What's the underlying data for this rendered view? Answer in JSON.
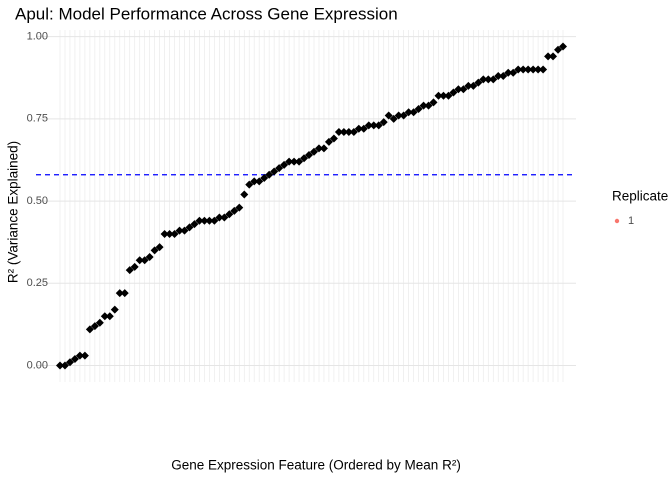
{
  "chart_data": {
    "type": "scatter",
    "title": "Apul: Model Performance Across Gene Expression",
    "x_label": "Gene Expression Feature (Ordered by Mean R²)",
    "y_label": "R² (Variance Explained)",
    "legend_title": "Replicate",
    "categories": [
      null,
      null,
      null,
      null,
      null,
      null,
      null,
      null,
      null,
      null,
      null,
      null,
      null,
      null,
      null,
      null,
      null,
      null,
      null,
      null,
      null,
      null,
      null,
      null,
      null,
      null,
      null,
      null,
      null,
      null,
      null,
      null,
      null,
      null,
      null,
      null,
      null,
      null,
      null,
      null,
      null,
      null,
      null,
      null,
      null,
      null,
      null,
      null,
      null,
      null,
      null,
      null,
      null,
      null,
      null,
      null,
      null,
      null,
      null,
      null,
      null,
      null,
      null,
      null,
      null,
      null,
      null,
      null,
      null,
      null,
      null,
      null,
      null,
      null,
      null,
      null,
      null,
      null,
      null,
      null,
      null,
      null,
      null,
      null,
      null,
      null,
      null,
      null,
      null,
      null,
      null,
      null,
      null,
      null,
      null,
      null,
      null,
      null,
      null,
      null,
      null,
      null
    ],
    "series": [
      {
        "name": "1",
        "color": "#000000",
        "legend_color": "#F8766D",
        "values": [
          0.0,
          0.0,
          0.01,
          0.02,
          0.03,
          0.03,
          0.11,
          0.12,
          0.13,
          0.15,
          0.15,
          0.17,
          0.22,
          0.22,
          0.29,
          0.3,
          0.32,
          0.32,
          0.33,
          0.35,
          0.36,
          0.4,
          0.4,
          0.4,
          0.41,
          0.41,
          0.42,
          0.43,
          0.44,
          0.44,
          0.44,
          0.44,
          0.45,
          0.45,
          0.46,
          0.47,
          0.48,
          0.52,
          0.55,
          0.56,
          0.56,
          0.57,
          0.58,
          0.59,
          0.6,
          0.61,
          0.62,
          0.62,
          0.62,
          0.63,
          0.64,
          0.65,
          0.66,
          0.66,
          0.68,
          0.69,
          0.71,
          0.71,
          0.71,
          0.71,
          0.72,
          0.72,
          0.73,
          0.73,
          0.73,
          0.74,
          0.76,
          0.75,
          0.76,
          0.76,
          0.77,
          0.77,
          0.78,
          0.79,
          0.79,
          0.8,
          0.82,
          0.82,
          0.82,
          0.83,
          0.84,
          0.84,
          0.85,
          0.85,
          0.86,
          0.87,
          0.87,
          0.87,
          0.88,
          0.88,
          0.89,
          0.89,
          0.9,
          0.9,
          0.9,
          0.9,
          0.9,
          0.9,
          0.94,
          0.94,
          0.96,
          0.97
        ]
      }
    ],
    "hline": 0.58,
    "hline_color": "#0000ff",
    "ylim": [
      -0.05,
      1.02
    ],
    "yticks": [
      {
        "value": 0,
        "label": "0.00"
      },
      {
        "value": 0.25,
        "label": "0.25"
      },
      {
        "value": 0.5,
        "label": "0.50"
      },
      {
        "value": 0.75,
        "label": "0.75"
      },
      {
        "value": 1,
        "label": "1.00"
      }
    ],
    "grid": true
  }
}
